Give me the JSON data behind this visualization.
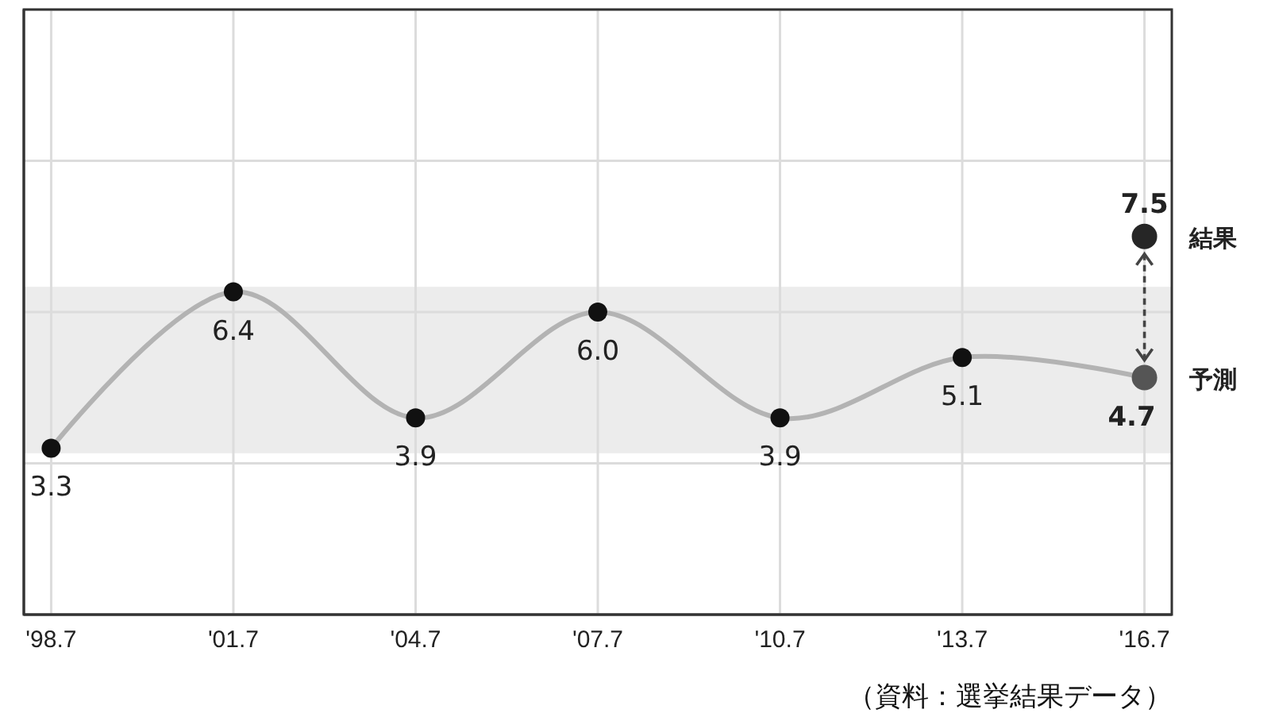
{
  "chart_data": {
    "type": "line",
    "categories": [
      "'98.7",
      "'01.7",
      "'04.7",
      "'07.7",
      "'10.7",
      "'13.7",
      "'16.7"
    ],
    "series": [
      {
        "color": "#b3b3b3",
        "marker": "none",
        "values": [
          3.3,
          6.4,
          3.9,
          6.0,
          3.9,
          5.1,
          4.7
        ]
      },
      {
        "type": "scatter",
        "color": "#111111",
        "marker": "circle",
        "values": [
          3.3,
          6.4,
          3.9,
          6.0,
          3.9,
          5.1,
          null
        ],
        "value_labels": [
          "3.3",
          "6.4",
          "3.9",
          "6.0",
          "3.9",
          "5.1",
          null
        ]
      },
      {
        "type": "scatter",
        "name": "予測",
        "color": "#555555",
        "marker": "circle",
        "values": [
          null,
          null,
          null,
          null,
          null,
          null,
          4.7
        ],
        "value_labels": [
          null,
          null,
          null,
          null,
          null,
          null,
          "4.7"
        ]
      },
      {
        "type": "scatter",
        "name": "結果",
        "color": "#262626",
        "marker": "circle",
        "values": [
          null,
          null,
          null,
          null,
          null,
          null,
          7.5
        ],
        "value_labels": [
          null,
          null,
          null,
          null,
          null,
          null,
          "7.5"
        ]
      }
    ],
    "ylim": [
      0,
      12
    ],
    "yticks": [
      {
        "value": 0,
        "label": null
      },
      {
        "value": 3,
        "label": null
      },
      {
        "value": 6,
        "label": null
      },
      {
        "value": 9,
        "label": null
      },
      {
        "value": 12,
        "label": null
      }
    ],
    "tick_labels": "x",
    "grid": true,
    "bands": [
      {
        "axis": "y",
        "from": 3.2,
        "to": 6.5,
        "color": "#ececec"
      }
    ],
    "annotations": [
      "（資料：選挙結果データ）"
    ]
  }
}
